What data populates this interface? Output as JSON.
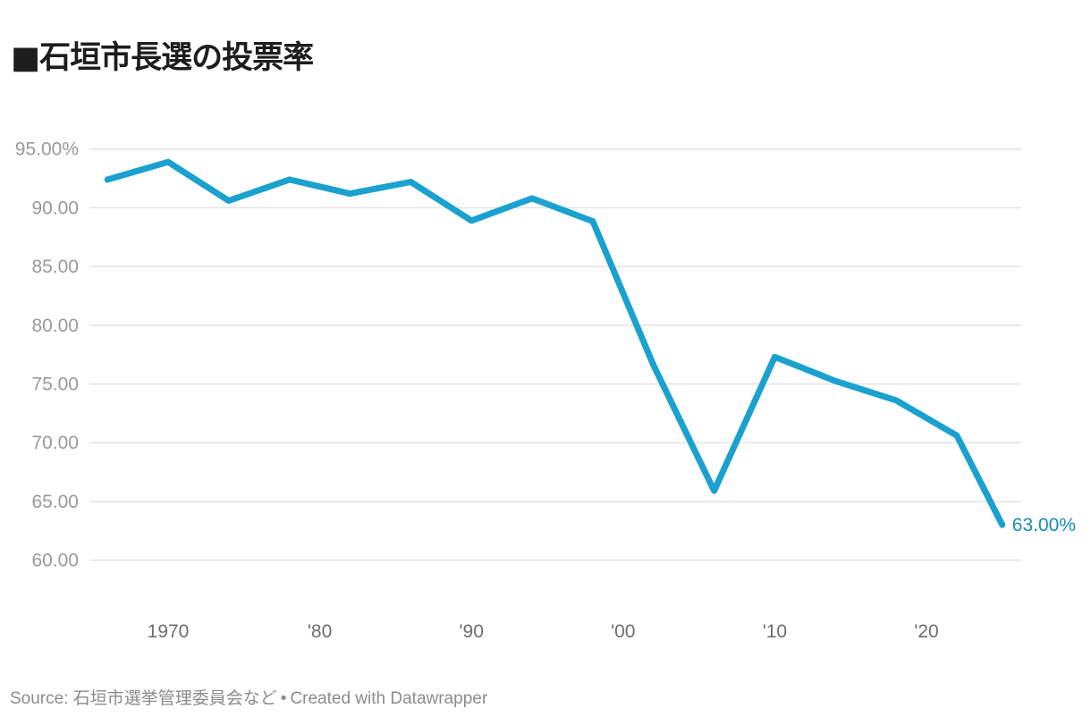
{
  "title": "■石垣市長選の投票率",
  "footer": {
    "source_label": "Source:",
    "source": "石垣市選挙管理委員会など",
    "separator": "•",
    "credit": "Created with Datawrapper"
  },
  "colors": {
    "line": "#1aa1cf",
    "end_label": "#1a8ab4",
    "grid": "#e3e3e3",
    "title": "#1d1d1d"
  },
  "chart_data": {
    "type": "line",
    "title": "■石垣市長選の投票率",
    "xlabel": "",
    "ylabel": "",
    "x": [
      1966,
      1970,
      1974,
      1978,
      1982,
      1986,
      1990,
      1994,
      1998,
      2002,
      2006,
      2010,
      2014,
      2018,
      2022,
      2025
    ],
    "series": [
      {
        "name": "投票率",
        "values": [
          92.4,
          93.9,
          90.6,
          92.4,
          91.2,
          92.2,
          88.9,
          90.8,
          88.85,
          76.6,
          65.9,
          77.3,
          75.25,
          73.6,
          70.6,
          63.0
        ]
      }
    ],
    "yticks": [
      60,
      65,
      70,
      75,
      80,
      85,
      90,
      95
    ],
    "ytick_labels": [
      "60.00",
      "65.00",
      "70.00",
      "75.00",
      "80.00",
      "85.00",
      "90.00",
      "95.00%"
    ],
    "xticks": [
      1970,
      1980,
      1990,
      2000,
      2010,
      2020
    ],
    "xtick_labels": [
      "1970",
      "'80",
      "'90",
      "'00",
      "'10",
      "'20"
    ],
    "ylim": [
      60,
      95
    ],
    "grid": true,
    "legend": "none",
    "annotations": [
      {
        "x": 2025,
        "y": 63.0,
        "text": "63.00%"
      }
    ]
  }
}
